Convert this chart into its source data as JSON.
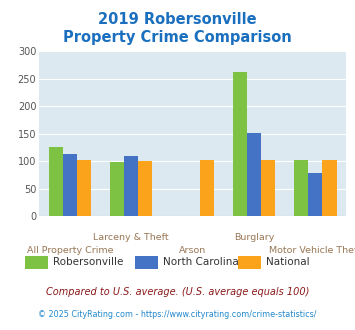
{
  "title_line1": "2019 Robersonville",
  "title_line2": "Property Crime Comparison",
  "categories": [
    "All Property Crime",
    "Larceny & Theft",
    "Arson",
    "Burglary",
    "Motor Vehicle Theft"
  ],
  "cat_labels_row1": [
    "",
    "Larceny & Theft",
    "",
    "Burglary",
    ""
  ],
  "cat_labels_row2": [
    "All Property Crime",
    "",
    "Arson",
    "",
    "Motor Vehicle Theft"
  ],
  "series": {
    "Robersonville": [
      125,
      98,
      0,
      262,
      103
    ],
    "North Carolina": [
      113,
      110,
      0,
      152,
      79
    ],
    "National": [
      102,
      101,
      102,
      102,
      102
    ]
  },
  "colors": {
    "Robersonville": "#7dc242",
    "North Carolina": "#4472c4",
    "National": "#faa31b"
  },
  "ylim": [
    0,
    300
  ],
  "yticks": [
    0,
    50,
    100,
    150,
    200,
    250,
    300
  ],
  "title_color": "#1a6fbe",
  "title_fontsize": 10.5,
  "bg_color": "#dce9f0",
  "legend_labels": [
    "Robersonville",
    "North Carolina",
    "National"
  ],
  "footnote1": "Compared to U.S. average. (U.S. average equals 100)",
  "footnote2": "© 2025 CityRating.com - https://www.cityrating.com/crime-statistics/",
  "footnote1_color": "#8b1a1a",
  "footnote2_color": "#2288cc",
  "xlabel_color": "#997755"
}
